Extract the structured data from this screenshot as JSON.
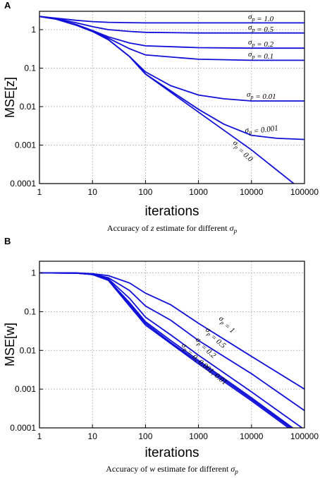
{
  "chart_data": [
    {
      "panel_label": "A",
      "type": "line",
      "xlabel": "iterations",
      "ylabel": "MSE[z]",
      "caption": "Accuracy of z estimate for different σ_p",
      "xscale": "log",
      "yscale": "log",
      "xlim": [
        1,
        100000
      ],
      "ylim": [
        0.0001,
        3
      ],
      "x_ticks": [
        "1",
        "10",
        "100",
        "1000",
        "10000",
        "100000"
      ],
      "y_ticks": [
        "1",
        "0.1",
        "0.01",
        "0.001",
        "0.0001"
      ],
      "grid": true,
      "color": "#1010d8",
      "series": [
        {
          "name": "σ_p = 1.0",
          "x": [
            1,
            2,
            5,
            10,
            20,
            50,
            100,
            1000,
            10000,
            100000
          ],
          "y": [
            2.2,
            2.0,
            1.75,
            1.62,
            1.55,
            1.52,
            1.5,
            1.5,
            1.5,
            1.5
          ]
        },
        {
          "name": "σ_p = 0.5",
          "x": [
            1,
            2,
            5,
            10,
            20,
            50,
            100,
            1000,
            10000,
            100000
          ],
          "y": [
            2.2,
            1.95,
            1.5,
            1.2,
            1.0,
            0.9,
            0.85,
            0.82,
            0.82,
            0.82
          ]
        },
        {
          "name": "σ_p = 0.2",
          "x": [
            1,
            2,
            5,
            10,
            20,
            50,
            100,
            1000,
            10000,
            100000
          ],
          "y": [
            2.2,
            1.9,
            1.35,
            0.95,
            0.65,
            0.45,
            0.38,
            0.34,
            0.33,
            0.33
          ]
        },
        {
          "name": "σ_p = 0.1",
          "x": [
            1,
            2,
            5,
            10,
            20,
            50,
            100,
            1000,
            10000,
            100000
          ],
          "y": [
            2.2,
            1.9,
            1.3,
            0.9,
            0.6,
            0.32,
            0.22,
            0.17,
            0.16,
            0.16
          ]
        },
        {
          "name": "σ_p = 0.01",
          "x": [
            1,
            2,
            5,
            10,
            20,
            50,
            100,
            300,
            1000,
            3000,
            10000,
            100000
          ],
          "y": [
            2.2,
            1.9,
            1.3,
            0.9,
            0.55,
            0.2,
            0.08,
            0.035,
            0.02,
            0.016,
            0.014,
            0.014
          ]
        },
        {
          "name": "σ_p = 0.001",
          "x": [
            1,
            2,
            5,
            10,
            20,
            50,
            100,
            1000,
            3000,
            10000,
            30000,
            100000
          ],
          "y": [
            2.2,
            1.9,
            1.3,
            0.9,
            0.55,
            0.2,
            0.07,
            0.0085,
            0.0035,
            0.0018,
            0.0015,
            0.0014
          ]
        },
        {
          "name": "σ_p = 0.0",
          "x": [
            1,
            2,
            5,
            10,
            20,
            50,
            100,
            1000,
            10000,
            100000
          ],
          "y": [
            2.2,
            1.9,
            1.3,
            0.9,
            0.55,
            0.2,
            0.07,
            0.0072,
            0.00075,
            6e-05
          ]
        }
      ]
    },
    {
      "panel_label": "B",
      "type": "line",
      "xlabel": "iterations",
      "ylabel": "MSE[w]",
      "caption": "Accuracy of w estimate for different σ_p",
      "xscale": "log",
      "yscale": "log",
      "xlim": [
        1,
        100000
      ],
      "ylim": [
        0.0001,
        2
      ],
      "x_ticks": [
        "1",
        "10",
        "100",
        "1000",
        "10000",
        "100000"
      ],
      "y_ticks": [
        "1",
        "0.1",
        "0.01",
        "0.001",
        "0.0001"
      ],
      "grid": true,
      "color": "#1010d8",
      "series": [
        {
          "name": "σ_p = 1",
          "x": [
            1,
            5,
            10,
            20,
            50,
            100,
            300,
            1000,
            10000,
            100000
          ],
          "y": [
            1.0,
            1.0,
            0.95,
            0.85,
            0.55,
            0.3,
            0.15,
            0.05,
            0.007,
            0.001
          ]
        },
        {
          "name": "σ_p = 0.5",
          "x": [
            1,
            5,
            10,
            20,
            50,
            100,
            300,
            1000,
            10000,
            100000
          ],
          "y": [
            1.0,
            0.99,
            0.93,
            0.75,
            0.35,
            0.14,
            0.06,
            0.018,
            0.0025,
            0.00028
          ]
        },
        {
          "name": "σ_p = 0.2",
          "x": [
            1,
            5,
            10,
            20,
            50,
            100,
            300,
            1000,
            10000,
            100000
          ],
          "y": [
            1.0,
            0.99,
            0.92,
            0.7,
            0.22,
            0.072,
            0.025,
            0.0075,
            0.00085,
            9e-05
          ]
        },
        {
          "name": "σ_p = 0, 0.001, 0.01",
          "x": [
            1,
            5,
            10,
            20,
            50,
            100,
            300,
            1000,
            10000,
            100000
          ],
          "y": [
            1.0,
            0.99,
            0.91,
            0.66,
            0.17,
            0.055,
            0.018,
            0.0055,
            0.0006,
            6e-05
          ]
        },
        {
          "name": "",
          "x": [
            1,
            5,
            10,
            20,
            50,
            100,
            300,
            1000,
            10000,
            100000
          ],
          "y": [
            1.0,
            0.99,
            0.91,
            0.65,
            0.155,
            0.05,
            0.016,
            0.005,
            0.00055,
            5.5e-05
          ]
        },
        {
          "name": "",
          "x": [
            1,
            5,
            10,
            20,
            50,
            100,
            300,
            1000,
            10000,
            100000
          ],
          "y": [
            1.0,
            0.99,
            0.91,
            0.64,
            0.14,
            0.045,
            0.015,
            0.0045,
            0.0005,
            5e-05
          ]
        }
      ]
    }
  ]
}
